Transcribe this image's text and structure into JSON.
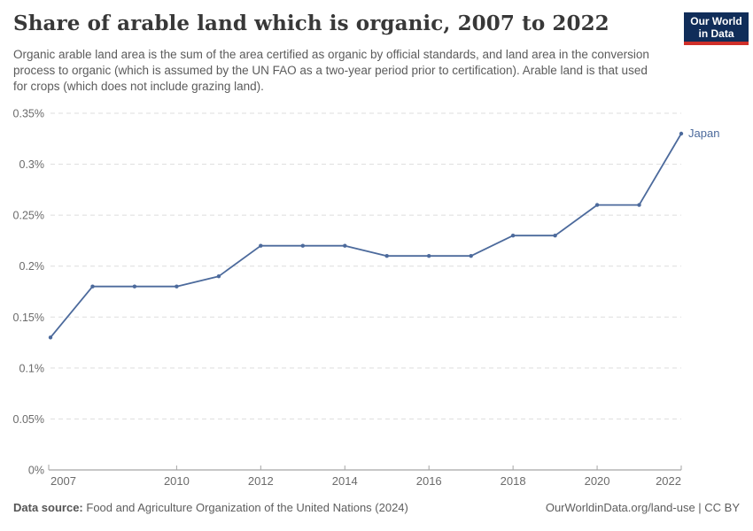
{
  "header": {
    "title": "Share of arable land which is organic, 2007 to 2022",
    "subtitle": "Organic arable land area is the sum of the area certified as organic by official standards, and land area in the conversion process to organic (which is assumed by the UN FAO as a two-year period prior to certification). Arable land is that used for crops (which does not include grazing land).",
    "logo": {
      "line1": "Our World",
      "line2": "in Data",
      "bg_color": "#102d59",
      "stripe_color": "#cf2f29"
    }
  },
  "chart_data": {
    "type": "line",
    "title": "Share of arable land which is organic, 2007 to 2022",
    "x": [
      2007,
      2008,
      2009,
      2010,
      2011,
      2012,
      2013,
      2014,
      2015,
      2016,
      2017,
      2018,
      2019,
      2020,
      2021,
      2022
    ],
    "series": [
      {
        "name": "Japan",
        "color": "#4c6a9c",
        "values": [
          0.13,
          0.18,
          0.18,
          0.18,
          0.19,
          0.22,
          0.22,
          0.22,
          0.21,
          0.21,
          0.21,
          0.23,
          0.23,
          0.26,
          0.26,
          0.33
        ]
      }
    ],
    "unit": "%",
    "xlim": [
      2007,
      2022
    ],
    "ylim": [
      0,
      0.35
    ],
    "ytick_values": [
      0,
      0.05,
      0.1,
      0.15,
      0.2,
      0.25,
      0.3,
      0.35
    ],
    "ytick_labels": [
      "0%",
      "0.05%",
      "0.1%",
      "0.15%",
      "0.2%",
      "0.25%",
      "0.3%",
      "0.35%"
    ],
    "xtick_values": [
      2007,
      2010,
      2012,
      2014,
      2016,
      2018,
      2020,
      2022
    ],
    "grid": "horizontal-dashed",
    "legend_position": "line-end-label",
    "style": {
      "grid_color": "#dddddd",
      "axis_color": "#8f8f8f",
      "tick_color": "#a6a6a6",
      "tick_label_color": "#6b6b6b"
    }
  },
  "footer": {
    "source_label": "Data source:",
    "source_text": "Food and Agriculture Organization of the United Nations (2024)",
    "credit": "OurWorldinData.org/land-use | CC BY"
  }
}
